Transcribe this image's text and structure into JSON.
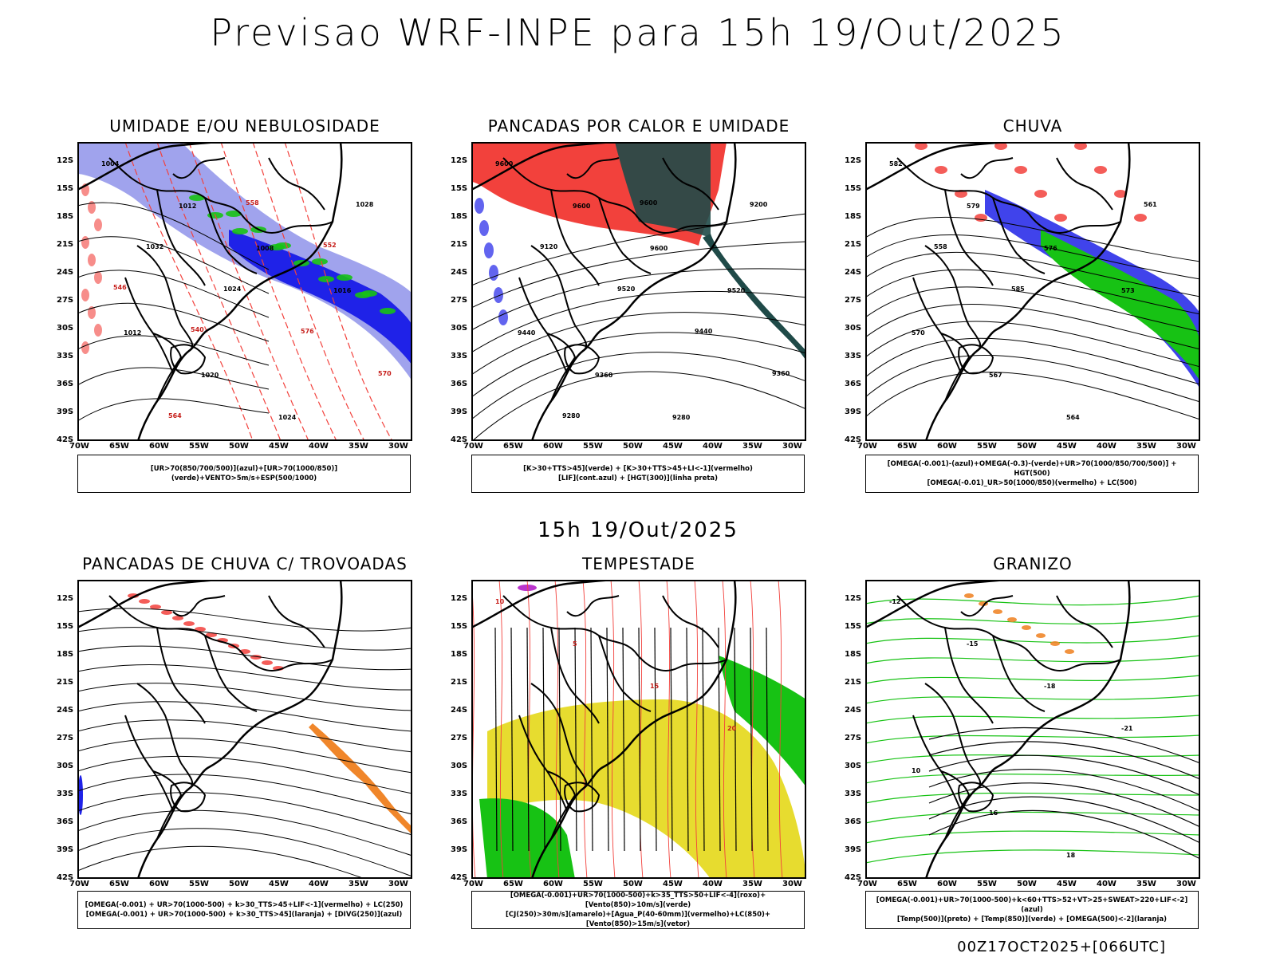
{
  "header": {
    "title": "Previsao WRF-INPE  para 15h 19/Out/2025",
    "subtitle": "15h 19/Out/2025"
  },
  "axes": {
    "latitudes": [
      "12S",
      "15S",
      "18S",
      "21S",
      "24S",
      "27S",
      "30S",
      "33S",
      "36S",
      "39S",
      "42S"
    ],
    "longitudes": [
      "70W",
      "65W",
      "60W",
      "55W",
      "50W",
      "45W",
      "40W",
      "35W",
      "30W"
    ]
  },
  "panels": [
    {
      "title": "UMIDADE E/OU NEBULOSIDADE",
      "legend": [
        "[UR>70(850/700/500)](azul)+[UR>70(1000/850)](verde)+VENTO>5m/s+ESP(500/1000)"
      ],
      "labels": [
        "1004",
        "1012",
        "1008",
        "1016",
        "1012",
        "1020",
        "1024",
        "1028",
        "1032",
        "1024",
        "576",
        "570",
        "564",
        "558",
        "552",
        "546",
        "540"
      ]
    },
    {
      "title": "PANCADAS POR CALOR E UMIDADE",
      "legend": [
        "[K>30+TTS>45](verde) + [K>30+TTS>45+LI<-1](vermelho)",
        "[LIF](cont.azul) + [HGT(300)](linha preta)"
      ],
      "labels": [
        "9600",
        "9600",
        "9600",
        "9520",
        "9440",
        "9360",
        "9280",
        "9200",
        "9120",
        "9520",
        "9440",
        "9360",
        "9280",
        "9600"
      ]
    },
    {
      "title": "CHUVA",
      "legend": [
        "[OMEGA(-0.001)-(azul)+OMEGA(-0.3)-(verde)+UR>70(1000/850/700/500)] + HGT(500)",
        "[OMEGA(-0.01)_UR>50(1000/850)(vermelho) + LC(500)"
      ],
      "labels": [
        "582",
        "579",
        "576",
        "573",
        "570",
        "567",
        "564",
        "561",
        "558",
        "585"
      ]
    },
    {
      "title": "PANCADAS DE CHUVA C/ TROVOADAS",
      "legend": [
        "[OMEGA(-0.001) + UR>70(1000-500) + k>30_TTS>45+LIF<-1](vermelho) + LC(250)",
        "[OMEGA(-0.001) + UR>70(1000-500) + k>30_TTS>45](laranja) + [DIVG(250)](azul)"
      ],
      "labels": []
    },
    {
      "title": "TEMPESTADE",
      "legend": [
        "[OMEGA(-0.001)+UR>70(1000-500)+k>35_TTS>50+LIF<-4](roxo)+[Vento(850)>10m/s](verde)",
        "[CJ(250)>30m/s](amarelo)+[Agua_P(40-60mm)](vermelho)+LC(850)+[Vento(850)>15m/s](vetor)"
      ],
      "labels": [
        "10",
        "5",
        "15",
        "20"
      ]
    },
    {
      "title": "GRANIZO",
      "legend": [
        "[OMEGA(-0.001)+UR>70(1000-500)+k<60+TTS>52+VT>25+SWEAT>220+LIF<-2](azul)",
        "[Temp(500)](preto) + [Temp(850)](verde) + [OMEGA(500)<-2](laranja)"
      ],
      "labels": [
        "-12",
        "-15",
        "-18",
        "-21",
        "10",
        "16",
        "18"
      ]
    }
  ],
  "footer": "00Z17OCT2025+[066UTC]",
  "colors": {
    "blue": "#1f22e8",
    "lightblue": "#8f93ea",
    "green": "#17c214",
    "red": "#f2413c",
    "darkteal": "#1f4a48",
    "yellow": "#e7dc2f",
    "orange": "#f0862a",
    "purple": "#b21ec8"
  }
}
